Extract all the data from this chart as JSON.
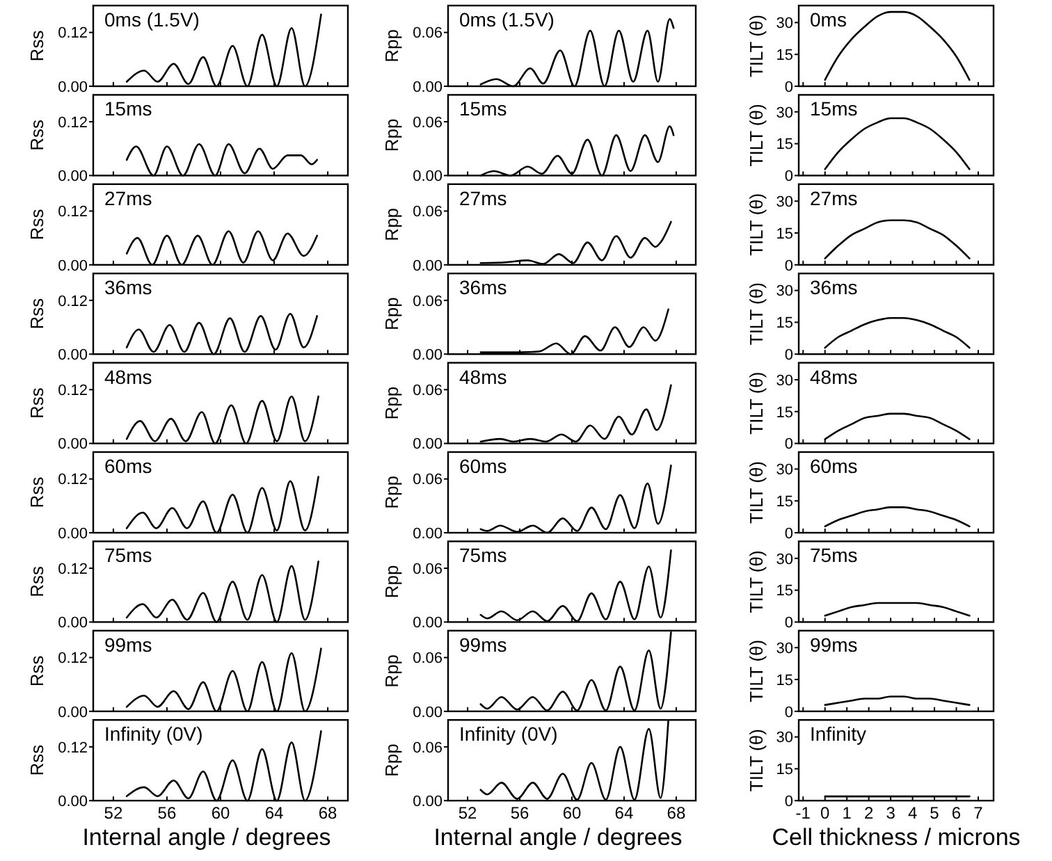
{
  "chart_data": [
    {
      "type": "line",
      "title": "0ms (1.5V)",
      "ylabel": "Rss",
      "color": "#000000",
      "xlim": [
        50.5,
        69.5
      ],
      "xticks": [
        52,
        56,
        60,
        64,
        68
      ],
      "ylim": [
        0,
        0.18
      ],
      "yticks": [
        {
          "value": 0,
          "label": "0.00"
        },
        {
          "value": 0.12,
          "label": "0.12"
        }
      ],
      "tick_labels": "y",
      "x": [
        53,
        54.3,
        55.3,
        56.5,
        57.6,
        58.7,
        59.7,
        60.9,
        62,
        63.1,
        64.2,
        65.3,
        66.3,
        67.5
      ],
      "values": [
        0.01,
        0.035,
        0.01,
        0.05,
        0.005,
        0.065,
        0,
        0.09,
        0,
        0.115,
        0,
        0.13,
        0,
        0.16
      ]
    },
    {
      "type": "line",
      "title": "0ms (1.5V)",
      "ylabel": "Rpp",
      "color": "#000000",
      "xlim": [
        50.5,
        69.5
      ],
      "xticks": [
        52,
        56,
        60,
        64,
        68
      ],
      "ylim": [
        0,
        0.09
      ],
      "yticks": [
        {
          "value": 0,
          "label": "0.00"
        },
        {
          "value": 0.06,
          "label": "0.06"
        }
      ],
      "tick_labels": "y",
      "x": [
        53,
        54.2,
        55.5,
        56.8,
        57.8,
        59.1,
        60.2,
        61.4,
        62.5,
        63.6,
        64.7,
        65.8,
        66.6,
        67.5,
        67.8
      ],
      "values": [
        0.002,
        0.008,
        0,
        0.02,
        0.003,
        0.04,
        0,
        0.062,
        0,
        0.062,
        0.005,
        0.062,
        0.005,
        0.075,
        0.065
      ]
    },
    {
      "type": "line",
      "title": "0ms",
      "ylabel": "TILT (θ)",
      "color": "#000000",
      "xlim": [
        -1.2,
        7.7
      ],
      "xticks": [
        -1,
        0,
        1,
        2,
        3,
        4,
        5,
        6,
        7
      ],
      "ylim": [
        0,
        38
      ],
      "yticks": [
        0,
        15,
        30
      ],
      "tick_labels": "y",
      "x": [
        0,
        0.6,
        1.2,
        1.8,
        2.4,
        3,
        3.6,
        4.2,
        4.8,
        5.4,
        6,
        6.6
      ],
      "values": [
        3,
        14,
        22,
        28,
        33,
        35,
        35,
        33,
        28,
        22,
        14,
        3
      ]
    },
    {
      "type": "line",
      "title": "15ms",
      "ylabel": "Rss",
      "color": "#000000",
      "xlim": [
        50.5,
        69.5
      ],
      "xticks": [
        52,
        56,
        60,
        64,
        68
      ],
      "ylim": [
        0,
        0.18
      ],
      "yticks": [
        {
          "value": 0,
          "label": "0.00"
        },
        {
          "value": 0.12,
          "label": "0.12"
        }
      ],
      "tick_labels": "y",
      "x": [
        53,
        53.7,
        55,
        56,
        57.2,
        58.4,
        59.6,
        60.6,
        61.8,
        62.9,
        63.9,
        65,
        66,
        66.8,
        67.2
      ],
      "values": [
        0.035,
        0.065,
        0,
        0.065,
        0,
        0.07,
        0,
        0.07,
        0.005,
        0.06,
        0.015,
        0.045,
        0.045,
        0.025,
        0.035
      ]
    },
    {
      "type": "line",
      "title": "15ms",
      "ylabel": "Rpp",
      "color": "#000000",
      "xlim": [
        50.5,
        69.5
      ],
      "xticks": [
        52,
        56,
        60,
        64,
        68
      ],
      "ylim": [
        0,
        0.09
      ],
      "yticks": [
        {
          "value": 0,
          "label": "0.00"
        },
        {
          "value": 0.06,
          "label": "0.06"
        }
      ],
      "tick_labels": "y",
      "x": [
        53,
        54,
        55.3,
        56.6,
        57.7,
        58.9,
        60,
        61.2,
        62.3,
        63.4,
        64.5,
        65.6,
        66.6,
        67.5,
        67.8
      ],
      "values": [
        0,
        0.005,
        0,
        0.01,
        0.002,
        0.022,
        0.002,
        0.04,
        0,
        0.045,
        0.005,
        0.045,
        0.015,
        0.055,
        0.045
      ]
    },
    {
      "type": "line",
      "title": "15ms",
      "ylabel": "TILT (θ)",
      "color": "#000000",
      "xlim": [
        -1.2,
        7.7
      ],
      "xticks": [
        -1,
        0,
        1,
        2,
        3,
        4,
        5,
        6,
        7
      ],
      "ylim": [
        0,
        38
      ],
      "yticks": [
        0,
        15,
        30
      ],
      "tick_labels": "y",
      "x": [
        0,
        0.6,
        1.2,
        1.8,
        2.4,
        3,
        3.6,
        4.2,
        4.8,
        5.4,
        6,
        6.6
      ],
      "values": [
        3,
        11,
        17,
        22,
        25,
        27,
        27,
        25,
        22,
        17,
        11,
        3
      ]
    },
    {
      "type": "line",
      "title": "27ms",
      "ylabel": "Rss",
      "color": "#000000",
      "xlim": [
        50.5,
        69.5
      ],
      "xticks": [
        52,
        56,
        60,
        64,
        68
      ],
      "ylim": [
        0,
        0.18
      ],
      "yticks": [
        {
          "value": 0,
          "label": "0.00"
        },
        {
          "value": 0.12,
          "label": "0.12"
        }
      ],
      "tick_labels": "y",
      "x": [
        53,
        53.8,
        54.9,
        56,
        57.1,
        58.3,
        59.4,
        60.6,
        61.7,
        62.8,
        63.9,
        65,
        66.2,
        67.2
      ],
      "values": [
        0.025,
        0.06,
        0,
        0.065,
        0,
        0.065,
        0,
        0.075,
        0.005,
        0.075,
        0.01,
        0.07,
        0.02,
        0.065
      ]
    },
    {
      "type": "line",
      "title": "27ms",
      "ylabel": "Rpp",
      "color": "#000000",
      "xlim": [
        50.5,
        69.5
      ],
      "xticks": [
        52,
        56,
        60,
        64,
        68
      ],
      "ylim": [
        0,
        0.09
      ],
      "yticks": [
        {
          "value": 0,
          "label": "0.00"
        },
        {
          "value": 0.06,
          "label": "0.06"
        }
      ],
      "tick_labels": "y",
      "x": [
        53,
        55,
        56.6,
        57.8,
        59,
        60.1,
        61.2,
        62.3,
        63.4,
        64.5,
        65.6,
        66.4,
        66.8,
        67.6
      ],
      "values": [
        0.002,
        0.003,
        0.005,
        0.001,
        0.012,
        0.002,
        0.025,
        0.005,
        0.032,
        0.008,
        0.03,
        0.02,
        0.025,
        0.048
      ]
    },
    {
      "type": "line",
      "title": "27ms",
      "ylabel": "TILT (θ)",
      "color": "#000000",
      "xlim": [
        -1.2,
        7.7
      ],
      "xticks": [
        -1,
        0,
        1,
        2,
        3,
        4,
        5,
        6,
        7
      ],
      "ylim": [
        0,
        38
      ],
      "yticks": [
        0,
        15,
        30
      ],
      "tick_labels": "y",
      "x": [
        0,
        0.6,
        1.2,
        1.8,
        2.4,
        3,
        3.6,
        4.2,
        4.8,
        5.4,
        6,
        6.6
      ],
      "values": [
        3,
        9,
        14,
        17,
        20,
        21,
        21,
        20,
        17,
        14,
        9,
        3
      ]
    },
    {
      "type": "line",
      "title": "36ms",
      "ylabel": "Rss",
      "color": "#000000",
      "xlim": [
        50.5,
        69.5
      ],
      "xticks": [
        52,
        56,
        60,
        64,
        68
      ],
      "ylim": [
        0,
        0.18
      ],
      "yticks": [
        {
          "value": 0,
          "label": "0.00"
        },
        {
          "value": 0.12,
          "label": "0.12"
        }
      ],
      "tick_labels": "y",
      "x": [
        53,
        53.9,
        55,
        56.2,
        57.3,
        58.4,
        59.5,
        60.7,
        61.8,
        63,
        64.1,
        65.2,
        66.2,
        67.2
      ],
      "values": [
        0.015,
        0.055,
        0.005,
        0.065,
        0.005,
        0.07,
        0,
        0.08,
        0.005,
        0.085,
        0.01,
        0.09,
        0.015,
        0.085
      ]
    },
    {
      "type": "line",
      "title": "36ms",
      "ylabel": "Rpp",
      "color": "#000000",
      "xlim": [
        50.5,
        69.5
      ],
      "xticks": [
        52,
        56,
        60,
        64,
        68
      ],
      "ylim": [
        0,
        0.09
      ],
      "yticks": [
        {
          "value": 0,
          "label": "0.00"
        },
        {
          "value": 0.06,
          "label": "0.06"
        }
      ],
      "tick_labels": "y",
      "x": [
        53,
        56,
        57.5,
        58.8,
        59.9,
        61,
        62.2,
        63.3,
        64.4,
        65.5,
        66.4,
        67.4
      ],
      "values": [
        0.002,
        0.002,
        0.003,
        0.012,
        0,
        0.02,
        0.004,
        0.03,
        0.008,
        0.03,
        0.015,
        0.05
      ]
    },
    {
      "type": "line",
      "title": "36ms",
      "ylabel": "TILT (θ)",
      "color": "#000000",
      "xlim": [
        -1.2,
        7.7
      ],
      "xticks": [
        -1,
        0,
        1,
        2,
        3,
        4,
        5,
        6,
        7
      ],
      "ylim": [
        0,
        38
      ],
      "yticks": [
        0,
        15,
        30
      ],
      "tick_labels": "y",
      "x": [
        0,
        0.6,
        1.2,
        1.8,
        2.4,
        3,
        3.6,
        4.2,
        4.8,
        5.4,
        6,
        6.6
      ],
      "values": [
        3,
        8,
        11,
        14,
        16,
        17,
        17,
        16,
        14,
        11,
        8,
        3
      ]
    },
    {
      "type": "line",
      "title": "48ms",
      "ylabel": "Rss",
      "color": "#000000",
      "xlim": [
        50.5,
        69.5
      ],
      "xticks": [
        52,
        56,
        60,
        64,
        68
      ],
      "ylim": [
        0,
        0.18
      ],
      "yticks": [
        {
          "value": 0,
          "label": "0.00"
        },
        {
          "value": 0.12,
          "label": "0.12"
        }
      ],
      "tick_labels": "y",
      "x": [
        53,
        54,
        55.1,
        56.3,
        57.4,
        58.6,
        59.6,
        60.8,
        61.9,
        63.1,
        64.2,
        65.3,
        66.3,
        67.3
      ],
      "values": [
        0.01,
        0.05,
        0.005,
        0.055,
        0.005,
        0.07,
        0,
        0.085,
        0,
        0.095,
        0.005,
        0.105,
        0.005,
        0.105
      ]
    },
    {
      "type": "line",
      "title": "48ms",
      "ylabel": "Rpp",
      "color": "#000000",
      "xlim": [
        50.5,
        69.5
      ],
      "xticks": [
        52,
        56,
        60,
        64,
        68
      ],
      "ylim": [
        0,
        0.09
      ],
      "yticks": [
        {
          "value": 0,
          "label": "0.00"
        },
        {
          "value": 0.06,
          "label": "0.06"
        }
      ],
      "tick_labels": "y",
      "x": [
        53,
        54.5,
        55.5,
        56.8,
        58,
        59.2,
        60.3,
        61.4,
        62.5,
        63.6,
        64.6,
        65.7,
        66.5,
        67.6
      ],
      "values": [
        0.002,
        0.005,
        0.002,
        0.005,
        0.002,
        0.01,
        0.002,
        0.02,
        0.005,
        0.03,
        0.01,
        0.038,
        0.015,
        0.065
      ]
    },
    {
      "type": "line",
      "title": "48ms",
      "ylabel": "TILT (θ)",
      "color": "#000000",
      "xlim": [
        -1.2,
        7.7
      ],
      "xticks": [
        -1,
        0,
        1,
        2,
        3,
        4,
        5,
        6,
        7
      ],
      "ylim": [
        0,
        38
      ],
      "yticks": [
        0,
        15,
        30
      ],
      "tick_labels": "y",
      "x": [
        0,
        0.6,
        1.2,
        1.8,
        2.4,
        3,
        3.6,
        4.2,
        4.8,
        5.4,
        6,
        6.6
      ],
      "values": [
        2,
        6,
        9,
        12,
        13,
        14,
        14,
        13,
        12,
        9,
        6,
        2
      ]
    },
    {
      "type": "line",
      "title": "60ms",
      "ylabel": "Rss",
      "color": "#000000",
      "xlim": [
        50.5,
        69.5
      ],
      "xticks": [
        52,
        56,
        60,
        64,
        68
      ],
      "ylim": [
        0,
        0.18
      ],
      "yticks": [
        {
          "value": 0,
          "label": "0.00"
        },
        {
          "value": 0.12,
          "label": "0.12"
        }
      ],
      "tick_labels": "y",
      "x": [
        53,
        54.2,
        55.2,
        56.4,
        57.5,
        58.7,
        59.7,
        60.9,
        62,
        63.1,
        64.2,
        65.2,
        66.3,
        67.3
      ],
      "values": [
        0.01,
        0.045,
        0.01,
        0.055,
        0.01,
        0.07,
        0,
        0.085,
        0,
        0.1,
        0.005,
        0.115,
        0.005,
        0.125
      ]
    },
    {
      "type": "line",
      "title": "60ms",
      "ylabel": "Rpp",
      "color": "#000000",
      "xlim": [
        50.5,
        69.5
      ],
      "xticks": [
        52,
        56,
        60,
        64,
        68
      ],
      "ylim": [
        0,
        0.09
      ],
      "yticks": [
        {
          "value": 0,
          "label": "0.00"
        },
        {
          "value": 0.06,
          "label": "0.06"
        }
      ],
      "tick_labels": "y",
      "x": [
        53,
        53.5,
        54.5,
        55.8,
        57,
        58.1,
        59.3,
        60.4,
        61.5,
        62.6,
        63.7,
        64.8,
        65.8,
        66.6,
        67.6
      ],
      "values": [
        0.004,
        0.002,
        0.008,
        0.001,
        0.008,
        0,
        0.016,
        0.002,
        0.028,
        0.004,
        0.042,
        0.005,
        0.055,
        0.01,
        0.075
      ]
    },
    {
      "type": "line",
      "title": "60ms",
      "ylabel": "TILT (θ)",
      "color": "#000000",
      "xlim": [
        -1.2,
        7.7
      ],
      "xticks": [
        -1,
        0,
        1,
        2,
        3,
        4,
        5,
        6,
        7
      ],
      "ylim": [
        0,
        38
      ],
      "yticks": [
        0,
        15,
        30
      ],
      "tick_labels": "y",
      "x": [
        0,
        0.6,
        1.2,
        1.8,
        2.4,
        3,
        3.6,
        4.2,
        4.8,
        5.4,
        6,
        6.6
      ],
      "values": [
        3,
        6,
        8,
        10,
        11,
        12,
        12,
        11,
        10,
        8,
        6,
        3
      ]
    },
    {
      "type": "line",
      "title": "75ms",
      "ylabel": "Rss",
      "color": "#000000",
      "xlim": [
        50.5,
        69.5
      ],
      "xticks": [
        52,
        56,
        60,
        64,
        68
      ],
      "ylim": [
        0,
        0.18
      ],
      "yticks": [
        {
          "value": 0,
          "label": "0.00"
        },
        {
          "value": 0.12,
          "label": "0.12"
        }
      ],
      "tick_labels": "y",
      "x": [
        53,
        54.2,
        55.2,
        56.4,
        57.5,
        58.7,
        59.7,
        60.9,
        62,
        63.1,
        64.2,
        65.3,
        66.3,
        67.3
      ],
      "values": [
        0.01,
        0.04,
        0.01,
        0.05,
        0.005,
        0.065,
        0,
        0.09,
        0.005,
        0.105,
        0,
        0.125,
        0.005,
        0.135
      ]
    },
    {
      "type": "line",
      "title": "75ms",
      "ylabel": "Rpp",
      "color": "#000000",
      "xlim": [
        50.5,
        69.5
      ],
      "xticks": [
        52,
        56,
        60,
        64,
        68
      ],
      "ylim": [
        0,
        0.09
      ],
      "yticks": [
        {
          "value": 0,
          "label": "0.00"
        },
        {
          "value": 0.06,
          "label": "0.06"
        }
      ],
      "tick_labels": "y",
      "x": [
        53,
        53.5,
        54.6,
        55.8,
        57,
        58.1,
        59.3,
        60.4,
        61.5,
        62.6,
        63.7,
        64.8,
        65.9,
        66.8,
        67.6
      ],
      "values": [
        0.008,
        0.004,
        0.012,
        0.002,
        0.012,
        0.001,
        0.018,
        0.001,
        0.032,
        0.003,
        0.045,
        0.003,
        0.062,
        0.005,
        0.08
      ]
    },
    {
      "type": "line",
      "title": "75ms",
      "ylabel": "TILT (θ)",
      "color": "#000000",
      "xlim": [
        -1.2,
        7.7
      ],
      "xticks": [
        -1,
        0,
        1,
        2,
        3,
        4,
        5,
        6,
        7
      ],
      "ylim": [
        0,
        38
      ],
      "yticks": [
        0,
        15,
        30
      ],
      "tick_labels": "y",
      "x": [
        0,
        0.6,
        1.2,
        1.8,
        2.4,
        3,
        3.6,
        4.2,
        4.8,
        5.4,
        6,
        6.6
      ],
      "values": [
        3,
        5,
        7,
        8,
        9,
        9,
        9,
        9,
        8,
        7,
        5,
        3
      ]
    },
    {
      "type": "line",
      "title": "99ms",
      "ylabel": "Rss",
      "color": "#000000",
      "xlim": [
        50.5,
        69.5
      ],
      "xticks": [
        52,
        56,
        60,
        64,
        68
      ],
      "ylim": [
        0,
        0.18
      ],
      "yticks": [
        {
          "value": 0,
          "label": "0.00"
        },
        {
          "value": 0.12,
          "label": "0.12"
        }
      ],
      "tick_labels": "y",
      "x": [
        53,
        54.3,
        55.3,
        56.5,
        57.6,
        58.7,
        59.7,
        60.9,
        62,
        63.1,
        64.2,
        65.3,
        66.3,
        67.5
      ],
      "values": [
        0.01,
        0.035,
        0.01,
        0.045,
        0.005,
        0.065,
        0,
        0.09,
        0,
        0.11,
        0,
        0.13,
        0,
        0.14
      ]
    },
    {
      "type": "line",
      "title": "99ms",
      "ylabel": "Rpp",
      "color": "#000000",
      "xlim": [
        50.5,
        69.5
      ],
      "xticks": [
        52,
        56,
        60,
        64,
        68
      ],
      "ylim": [
        0,
        0.09
      ],
      "yticks": [
        {
          "value": 0,
          "label": "0.00"
        },
        {
          "value": 0.06,
          "label": "0.06"
        }
      ],
      "tick_labels": "y",
      "x": [
        53,
        53.5,
        54.6,
        55.8,
        57,
        58.1,
        59.3,
        60.4,
        61.5,
        62.6,
        63.7,
        64.8,
        65.9,
        66.8,
        67.6
      ],
      "values": [
        0.008,
        0.003,
        0.016,
        0.002,
        0.016,
        0.001,
        0.022,
        0.001,
        0.035,
        0.001,
        0.05,
        0.001,
        0.068,
        0.003,
        0.088
      ]
    },
    {
      "type": "line",
      "title": "99ms",
      "ylabel": "TILT (θ)",
      "color": "#000000",
      "xlim": [
        -1.2,
        7.7
      ],
      "xticks": [
        -1,
        0,
        1,
        2,
        3,
        4,
        5,
        6,
        7
      ],
      "ylim": [
        0,
        38
      ],
      "yticks": [
        0,
        15,
        30
      ],
      "tick_labels": "y",
      "x": [
        0,
        0.6,
        1.2,
        1.8,
        2.4,
        3,
        3.6,
        4.2,
        4.8,
        5.4,
        6,
        6.6
      ],
      "values": [
        3,
        4,
        5,
        6,
        6,
        7,
        7,
        6,
        6,
        5,
        4,
        3
      ]
    },
    {
      "type": "line",
      "title": "Infinity (0V)",
      "ylabel": "Rss",
      "xlabel": "Internal angle / degrees",
      "color": "#000000",
      "xlim": [
        50.5,
        69.5
      ],
      "xticks": [
        52,
        56,
        60,
        64,
        68
      ],
      "ylim": [
        0,
        0.18
      ],
      "yticks": [
        {
          "value": 0,
          "label": "0.00"
        },
        {
          "value": 0.12,
          "label": "0.12"
        }
      ],
      "x": [
        53,
        54.3,
        55.3,
        56.5,
        57.6,
        58.7,
        59.7,
        60.9,
        62,
        63.1,
        64.2,
        65.3,
        66.3,
        67.5
      ],
      "values": [
        0.01,
        0.03,
        0.01,
        0.045,
        0.005,
        0.065,
        0,
        0.09,
        0,
        0.115,
        0,
        0.13,
        0,
        0.155
      ]
    },
    {
      "type": "line",
      "title": "Infinity (0V)",
      "ylabel": "Rpp",
      "xlabel": "Internal angle / degrees",
      "color": "#000000",
      "xlim": [
        50.5,
        69.5
      ],
      "xticks": [
        52,
        56,
        60,
        64,
        68
      ],
      "ylim": [
        0,
        0.09
      ],
      "yticks": [
        {
          "value": 0,
          "label": "0.00"
        },
        {
          "value": 0.06,
          "label": "0.06"
        }
      ],
      "x": [
        53,
        53.5,
        54.6,
        55.8,
        57,
        58.1,
        59.3,
        60.4,
        61.5,
        62.6,
        63.7,
        64.8,
        65.9,
        66.8,
        67.4
      ],
      "values": [
        0.012,
        0.007,
        0.02,
        0.002,
        0.02,
        0.002,
        0.03,
        0.001,
        0.042,
        0.001,
        0.06,
        0.001,
        0.08,
        0.003,
        0.09
      ]
    },
    {
      "type": "line",
      "title": "Infinity",
      "ylabel": "TILT (θ)",
      "xlabel": "Cell thickness / microns",
      "color": "#000000",
      "xlim": [
        -1.2,
        7.7
      ],
      "xticks": [
        -1,
        0,
        1,
        2,
        3,
        4,
        5,
        6,
        7
      ],
      "ylim": [
        0,
        38
      ],
      "yticks": [
        0,
        15,
        30
      ],
      "x": [
        0,
        6.6
      ],
      "values": [
        2,
        2
      ]
    }
  ]
}
